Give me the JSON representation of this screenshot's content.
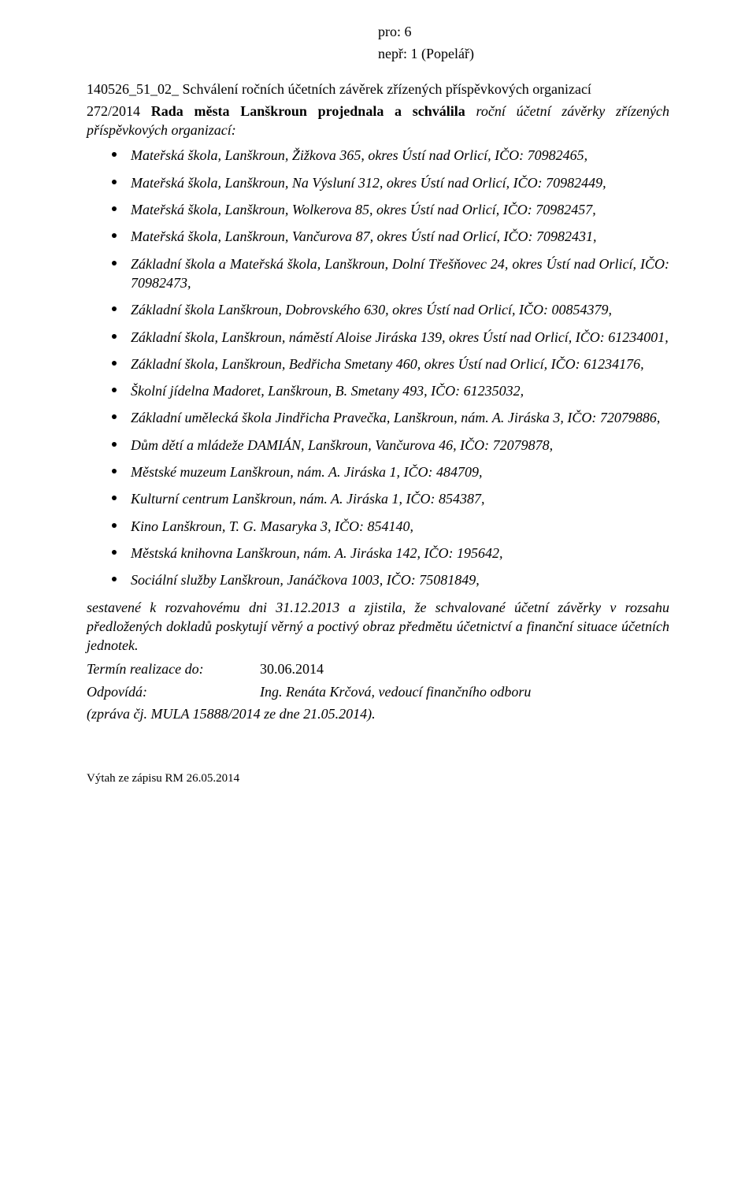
{
  "top": {
    "line1": "pro: 6",
    "line2": "nepř: 1 (Popelář)"
  },
  "heading": "140526_51_02_ Schválení ročních účetních závěrek zřízených příspěvkových organizací",
  "intro": {
    "ref": "272/2014 ",
    "bold": "Rada města Lanškroun projednala a schválila",
    "rest": " roční účetní závěrky zřízených příspěvkových organizací:"
  },
  "bullets": [
    "Mateřská škola, Lanškroun, Žižkova 365, okres Ústí nad Orlicí, IČO: 70982465,",
    "Mateřská škola, Lanškroun, Na Výsluní 312, okres Ústí nad Orlicí, IČO: 70982449,",
    "Mateřská škola, Lanškroun, Wolkerova 85, okres Ústí nad Orlicí, IČO: 70982457,",
    "Mateřská škola, Lanškroun, Vančurova 87, okres Ústí nad Orlicí, IČO: 70982431,",
    "Základní škola a Mateřská škola, Lanškroun, Dolní Třešňovec 24, okres Ústí nad Orlicí, IČO: 70982473,",
    "Základní škola Lanškroun, Dobrovského 630, okres Ústí nad Orlicí, IČO: 00854379,",
    "Základní škola, Lanškroun, náměstí Aloise Jiráska 139, okres Ústí nad Orlicí, IČO: 61234001,",
    "Základní škola, Lanškroun, Bedřicha Smetany 460, okres Ústí nad Orlicí, IČO: 61234176,",
    "Školní jídelna Madoret, Lanškroun, B. Smetany 493,  IČO: 61235032,",
    "Základní umělecká škola Jindřicha Pravečka, Lanškroun, nám. A. Jiráska 3, IČO: 72079886,",
    "Dům dětí a mládeže DAMIÁN, Lanškroun, Vančurova 46, IČO: 72079878,",
    "Městské muzeum Lanškroun, nám. A. Jiráska 1, IČO: 484709,",
    "Kulturní centrum Lanškroun, nám. A. Jiráska 1, IČO: 854387,",
    "Kino Lanškroun, T. G. Masaryka 3,  IČO: 854140,",
    "Městská knihovna Lanškroun, nám. A. Jiráska 142, IČO: 195642,",
    "Sociální služby Lanškroun, Janáčkova 1003, IČO: 75081849,"
  ],
  "closing": "sestavené k rozvahovému dni 31.12.2013 a zjistila, že schvalované účetní závěrky v rozsahu předložených dokladů poskytují věrný a poctivý obraz předmětu účetnictví a finanční situace účetních jednotek.",
  "kv": [
    {
      "k": "Termín realizace do:",
      "v": "30.06.2014",
      "vItalic": false
    },
    {
      "k": "Odpovídá:",
      "v": "Ing. Renáta Krčová, vedoucí finančního odboru",
      "vItalic": true
    }
  ],
  "ref_line": "(zpráva čj. MULA 15888/2014 ze dne 21.05.2014).",
  "footer": "Výtah ze zápisu RM 26.05.2014"
}
